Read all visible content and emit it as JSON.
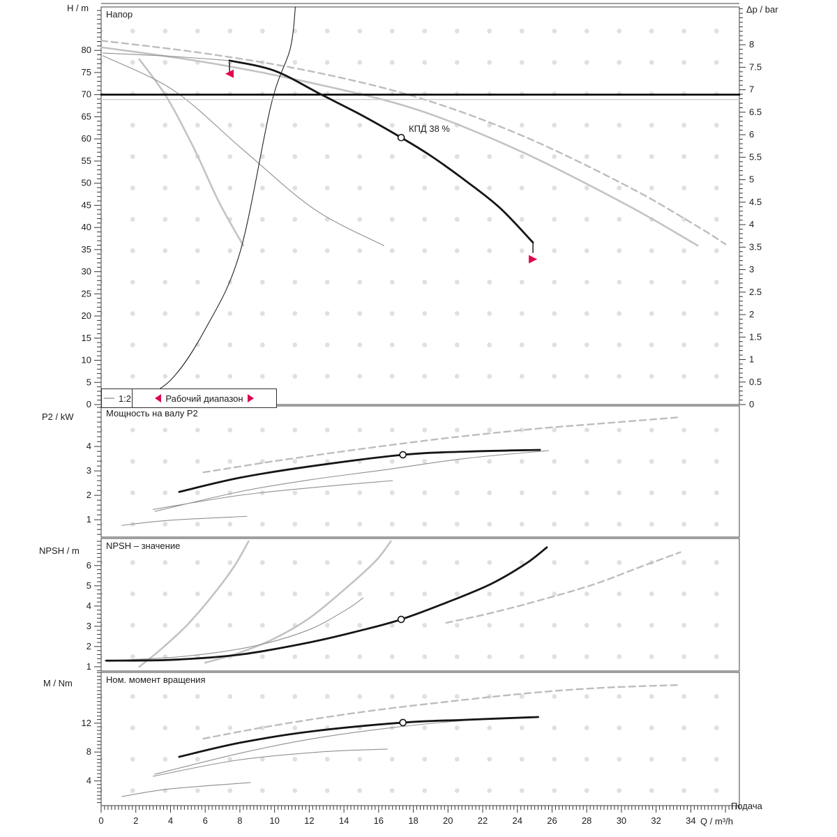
{
  "ui": {
    "legend": {
      "series_label": "1:2",
      "working_range_label": "Рабочий диапазон"
    },
    "x_axis": {
      "name_label": "Подача",
      "unit_label": "Q / m³/h",
      "tick_values": [
        0,
        2,
        4,
        6,
        8,
        10,
        12,
        14,
        16,
        18,
        20,
        22,
        24,
        26,
        28,
        30,
        32,
        34
      ],
      "minor_step": 0.2
    },
    "colors": {
      "accent_red": "#e0054b",
      "bold_curve": "#151515",
      "grey_curve": "#c3c3c3",
      "thin_curve": "#8f8f8f",
      "dashed_curve": "#bdbdbd",
      "grid_dot": "#e0e0e0",
      "axis": "#3f3f3f"
    }
  },
  "chart_data": [
    {
      "type": "line",
      "title": "Напор",
      "y_label": "H / m",
      "ylim": [
        0,
        89.8
      ],
      "y_ticks": [
        0,
        5,
        10,
        15,
        20,
        25,
        30,
        35,
        40,
        45,
        50,
        55,
        60,
        65,
        70,
        75,
        80
      ],
      "y_minor": 1,
      "y2_label": "Δp / bar",
      "y2lim": [
        0,
        8.84
      ],
      "y2_ticks": [
        0,
        0.5,
        1,
        1.5,
        2,
        2.5,
        3,
        3.5,
        4,
        4.5,
        5,
        5.5,
        6,
        6.5,
        7,
        7.5,
        8
      ],
      "y2_minor": 0.1,
      "xlim": [
        0,
        36.8
      ],
      "series": [
        {
          "name": "curve-dashed-variant",
          "style": "dashed",
          "points": [
            [
              0,
              82.2
            ],
            [
              6.2,
              79.2
            ],
            [
              12.3,
              75.1
            ],
            [
              18.3,
              69.3
            ],
            [
              24.3,
              60.7
            ],
            [
              30.4,
              49.2
            ],
            [
              34.4,
              40.2
            ],
            [
              36,
              36.2
            ]
          ]
        },
        {
          "name": "curve-grey-long",
          "style": "grey-thick",
          "points": [
            [
              0,
              80.7
            ],
            [
              6.2,
              77.2
            ],
            [
              12.3,
              72.5
            ],
            [
              18.3,
              66.5
            ],
            [
              24.3,
              57
            ],
            [
              30.4,
              44.9
            ],
            [
              34.4,
              35.9
            ]
          ]
        },
        {
          "name": "curve-grey-stub",
          "style": "thin",
          "points": [
            [
              0.1,
              79.4
            ],
            [
              3.8,
              78.7
            ],
            [
              7.4,
              77.7
            ]
          ]
        },
        {
          "name": "curve-small-pump",
          "style": "grey-thick",
          "points": [
            [
              2.2,
              78
            ],
            [
              3.8,
              69.3
            ],
            [
              5.4,
              57.5
            ],
            [
              6.8,
              45.7
            ],
            [
              8.2,
              35.9
            ]
          ]
        },
        {
          "name": "curve-medium-pump",
          "style": "thin",
          "points": [
            [
              0.1,
              78.8
            ],
            [
              4.2,
              70.9
            ],
            [
              8.2,
              57.5
            ],
            [
              12.3,
              44.1
            ],
            [
              16.3,
              35.9
            ]
          ]
        },
        {
          "name": "system-curve",
          "style": "black-thin",
          "points": [
            [
              1.8,
              0.3
            ],
            [
              4,
              5.5
            ],
            [
              6,
              17
            ],
            [
              8,
              34.3
            ],
            [
              9.8,
              67.7
            ],
            [
              10.9,
              80.3
            ],
            [
              11.2,
              89.8
            ]
          ]
        },
        {
          "name": "pressure-line-bold",
          "style": "hline-bold",
          "points": [
            [
              0,
              70
            ],
            [
              36.8,
              70
            ]
          ]
        },
        {
          "name": "pressure-line-thin",
          "style": "hline-thin",
          "points": [
            [
              0,
              68.9
            ],
            [
              36.8,
              68.9
            ]
          ]
        },
        {
          "name": "qh-curve-selected",
          "style": "bold",
          "points": [
            [
              7.4,
              77.7
            ],
            [
              10,
              75.4
            ],
            [
              12.7,
              70
            ],
            [
              15,
              65.4
            ],
            [
              17.3,
              60.3
            ],
            [
              19,
              56.2
            ],
            [
              21,
              50.6
            ],
            [
              23,
              44.4
            ],
            [
              24.9,
              36.6
            ]
          ]
        }
      ],
      "duty_point": {
        "q": 17.3,
        "value": 60.3
      },
      "annotation": {
        "text": "КПД  38 %",
        "q": 17.75,
        "value": 62.6
      },
      "working_range": {
        "q_start": 7.4,
        "q_end": 24.9
      }
    },
    {
      "type": "line",
      "title": "Мощность на валу P2",
      "y_label": "P2 / kW",
      "ylim": [
        0.29,
        5.66
      ],
      "y_ticks": [
        1,
        2,
        3,
        4
      ],
      "y_minor": 0.2,
      "xlim": [
        0,
        36.8
      ],
      "series": [
        {
          "name": "power-dashed-variant",
          "style": "dashed",
          "points": [
            [
              5.9,
              2.94
            ],
            [
              10,
              3.4
            ],
            [
              15,
              3.9
            ],
            [
              20,
              4.35
            ],
            [
              25,
              4.72
            ],
            [
              29,
              4.95
            ],
            [
              33.4,
              5.2
            ]
          ]
        },
        {
          "name": "power-thin-cross",
          "style": "thin",
          "points": [
            [
              3.1,
              1.34
            ],
            [
              8,
              2.15
            ],
            [
              12,
              2.63
            ],
            [
              16.5,
              3.06
            ],
            [
              21,
              3.51
            ],
            [
              25.8,
              3.83
            ]
          ]
        },
        {
          "name": "power-medium-pump",
          "style": "thin",
          "points": [
            [
              3,
              1.42
            ],
            [
              8,
              2
            ],
            [
              13,
              2.37
            ],
            [
              16.8,
              2.6
            ]
          ]
        },
        {
          "name": "power-small-pump",
          "style": "thin",
          "points": [
            [
              1.2,
              0.77
            ],
            [
              4,
              0.98
            ],
            [
              8.4,
              1.14
            ]
          ]
        },
        {
          "name": "power-curve-selected",
          "style": "bold",
          "points": [
            [
              4.5,
              2.14
            ],
            [
              8,
              2.72
            ],
            [
              12,
              3.18
            ],
            [
              17.4,
              3.66
            ],
            [
              21,
              3.79
            ],
            [
              25.3,
              3.86
            ]
          ]
        }
      ],
      "duty_point": {
        "q": 17.4,
        "value": 3.66
      }
    },
    {
      "type": "line",
      "title": "NPSH – значение",
      "y_label": "NPSH / m",
      "ylim": [
        0.79,
        7.34
      ],
      "y_ticks": [
        1,
        2,
        3,
        4,
        5,
        6
      ],
      "y_minor": 0.2,
      "xlim": [
        0,
        36.8
      ],
      "series": [
        {
          "name": "npsh-dashed-variant",
          "style": "dashed",
          "points": [
            [
              19.9,
              3.17
            ],
            [
              22.3,
              3.62
            ],
            [
              25.1,
              4.24
            ],
            [
              28.4,
              5.07
            ],
            [
              31.2,
              5.97
            ],
            [
              33.4,
              6.66
            ]
          ]
        },
        {
          "name": "npsh-small-pump",
          "style": "grey-thick",
          "points": [
            [
              2.2,
              1
            ],
            [
              3.5,
              1.9
            ],
            [
              5,
              3.1
            ],
            [
              6.5,
              4.6
            ],
            [
              7.7,
              6
            ],
            [
              8.5,
              7.2
            ]
          ]
        },
        {
          "name": "npsh-medium-pump",
          "style": "grey-thick",
          "points": [
            [
              6,
              1.2
            ],
            [
              8,
              1.7
            ],
            [
              10,
              2.4
            ],
            [
              12,
              3.4
            ],
            [
              14,
              4.8
            ],
            [
              15.8,
              6.2
            ],
            [
              16.7,
              7.2
            ]
          ]
        },
        {
          "name": "npsh-thin",
          "style": "thin",
          "points": [
            [
              0.2,
              1.3
            ],
            [
              4.6,
              1.5
            ],
            [
              8.7,
              2
            ],
            [
              11.9,
              2.8
            ],
            [
              14.1,
              3.8
            ],
            [
              15.1,
              4.4
            ]
          ]
        },
        {
          "name": "npsh-curve-selected",
          "style": "bold",
          "points": [
            [
              0.3,
              1.3
            ],
            [
              4,
              1.34
            ],
            [
              8,
              1.6
            ],
            [
              12,
              2.2
            ],
            [
              15,
              2.8
            ],
            [
              17.3,
              3.34
            ],
            [
              20,
              4.2
            ],
            [
              22.5,
              5.1
            ],
            [
              24.5,
              6.1
            ],
            [
              25.7,
              6.9
            ]
          ]
        }
      ],
      "duty_point": {
        "q": 17.3,
        "value": 3.34
      }
    },
    {
      "type": "line",
      "title": "Ном. момент вращения",
      "y_label": "M / Nm",
      "ylim": [
        0.58,
        19.03
      ],
      "y_ticks": [
        4,
        8,
        12
      ],
      "y_minor": 0.5,
      "xlim": [
        0,
        36.8
      ],
      "series": [
        {
          "name": "torque-dashed-variant",
          "style": "dashed",
          "points": [
            [
              5.9,
              9.86
            ],
            [
              10,
              11.69
            ],
            [
              15,
              13.53
            ],
            [
              20,
              14.98
            ],
            [
              25,
              16.23
            ],
            [
              29,
              16.91
            ],
            [
              33.4,
              17.29
            ]
          ]
        },
        {
          "name": "torque-thin-cross",
          "style": "thin",
          "points": [
            [
              3.1,
              4.93
            ],
            [
              8,
              7.83
            ],
            [
              12,
              9.76
            ],
            [
              16.5,
              11.3
            ],
            [
              21,
              12.37
            ],
            [
              25.2,
              12.85
            ]
          ]
        },
        {
          "name": "torque-medium-pump",
          "style": "thin",
          "points": [
            [
              3,
              4.64
            ],
            [
              7.8,
              6.86
            ],
            [
              12.7,
              8.02
            ],
            [
              16.5,
              8.41
            ]
          ]
        },
        {
          "name": "torque-small-pump",
          "style": "thin",
          "points": [
            [
              1.2,
              1.84
            ],
            [
              4,
              2.9
            ],
            [
              8.6,
              3.77
            ]
          ]
        },
        {
          "name": "torque-curve-selected",
          "style": "bold",
          "points": [
            [
              4.5,
              7.34
            ],
            [
              8,
              9.28
            ],
            [
              12,
              10.82
            ],
            [
              17.4,
              12.08
            ],
            [
              21,
              12.46
            ],
            [
              25.2,
              12.85
            ]
          ]
        }
      ],
      "duty_point": {
        "q": 17.4,
        "value": 12.08
      }
    }
  ]
}
